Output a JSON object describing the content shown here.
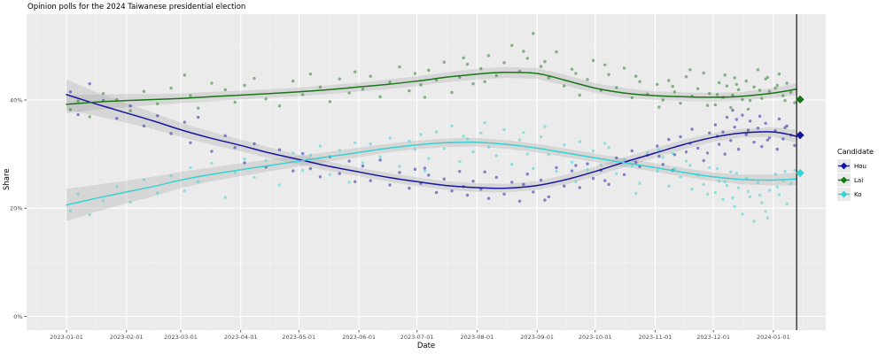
{
  "title": "Opinion polls for the 2024 Taiwanese presidential election",
  "axes": {
    "x_label": "Date",
    "y_label": "Share",
    "x_ticks": [
      {
        "label": "2023-01-01",
        "day": 0
      },
      {
        "label": "2023-02-01",
        "day": 31
      },
      {
        "label": "2023-03-01",
        "day": 59
      },
      {
        "label": "2023-04-01",
        "day": 90
      },
      {
        "label": "2023-05-01",
        "day": 120
      },
      {
        "label": "2023-06-01",
        "day": 151
      },
      {
        "label": "2023-07-01",
        "day": 181
      },
      {
        "label": "2023-08-01",
        "day": 212
      },
      {
        "label": "2023-09-01",
        "day": 243
      },
      {
        "label": "2023-10-01",
        "day": 273
      },
      {
        "label": "2023-11-01",
        "day": 304
      },
      {
        "label": "2023-12-01",
        "day": 334
      },
      {
        "label": "2024-01-01",
        "day": 365
      }
    ],
    "y_ticks": [
      {
        "label": "0%",
        "pct": 0
      },
      {
        "label": "20%",
        "pct": 20
      },
      {
        "label": "40%",
        "pct": 40
      }
    ],
    "y_minor_pcts": [
      10,
      30,
      50
    ]
  },
  "legend": {
    "title": "Candidate",
    "items": [
      {
        "label": "Hou",
        "key": "hou",
        "color": "#1515a0"
      },
      {
        "label": "Lai",
        "key": "lai",
        "color": "#177617"
      },
      {
        "label": "Ko",
        "key": "ko",
        "color": "#38d2d2"
      }
    ]
  },
  "colors": {
    "panel_bg": "#ebebeb",
    "grid_major": "#ffffff",
    "grid_minor": "#f4f4f4",
    "ribbon": "#979797",
    "axis_text": "#4d4d4d",
    "tick_mark": "#333333",
    "event_line": "#000000"
  },
  "chart_data": {
    "type": "scatter",
    "title": "Opinion polls for the 2024 Taiwanese presidential election",
    "xlabel": "Date",
    "ylabel": "Share",
    "x_unit": "days since 2023-01-01",
    "ylim_pct": [
      0,
      56
    ],
    "election_day": 377,
    "smooth": {
      "x_days": [
        0,
        15,
        31,
        46,
        59,
        74,
        90,
        105,
        120,
        135,
        151,
        166,
        181,
        196,
        212,
        227,
        243,
        258,
        273,
        288,
        304,
        319,
        334,
        349,
        365,
        377
      ],
      "series": [
        {
          "key": "hou",
          "name": "Hou",
          "values": [
            41.0,
            39.3,
            37.6,
            36.0,
            34.5,
            33.0,
            31.6,
            30.2,
            29.0,
            27.8,
            26.7,
            25.7,
            24.9,
            24.2,
            23.8,
            23.7,
            24.2,
            25.3,
            26.8,
            28.5,
            30.2,
            31.8,
            33.1,
            33.9,
            34.1,
            33.3
          ],
          "ci_halfwidth": [
            2.8,
            2.2,
            1.8,
            1.5,
            1.3,
            1.2,
            1.1,
            1.0,
            0.9,
            0.9,
            0.8,
            0.8,
            0.8,
            0.8,
            0.8,
            0.8,
            0.8,
            0.9,
            0.9,
            0.9,
            0.9,
            0.9,
            0.8,
            0.8,
            0.9,
            1.2
          ]
        },
        {
          "key": "lai",
          "name": "Lai",
          "values": [
            39.2,
            39.6,
            39.9,
            40.1,
            40.3,
            40.6,
            40.9,
            41.2,
            41.5,
            41.9,
            42.4,
            42.9,
            43.5,
            44.2,
            44.8,
            45.1,
            44.9,
            43.6,
            42.2,
            41.3,
            40.8,
            40.6,
            40.5,
            40.7,
            41.3,
            42.0
          ],
          "ci_halfwidth": [
            1.7,
            1.4,
            1.2,
            1.0,
            0.9,
            0.9,
            0.8,
            0.8,
            0.8,
            0.8,
            0.8,
            0.9,
            0.9,
            0.9,
            1.0,
            1.0,
            1.0,
            1.0,
            0.9,
            0.9,
            0.8,
            0.8,
            0.8,
            0.8,
            0.9,
            1.1
          ]
        },
        {
          "key": "ko",
          "name": "Ko",
          "values": [
            20.6,
            21.8,
            23.0,
            24.1,
            25.2,
            26.2,
            27.1,
            27.9,
            28.7,
            29.5,
            30.3,
            31.1,
            31.7,
            32.1,
            32.2,
            31.8,
            31.1,
            30.2,
            29.3,
            28.4,
            27.5,
            26.6,
            25.8,
            25.3,
            25.2,
            25.4
          ],
          "ci_halfwidth": [
            3.0,
            2.5,
            2.1,
            1.8,
            1.5,
            1.3,
            1.2,
            1.1,
            1.0,
            0.9,
            0.9,
            0.8,
            0.8,
            0.8,
            0.8,
            0.8,
            0.8,
            0.8,
            0.8,
            0.8,
            0.8,
            0.8,
            0.8,
            0.9,
            1.0,
            1.2
          ]
        }
      ]
    },
    "results": [
      {
        "key": "lai",
        "name": "Lai",
        "value": 40.1
      },
      {
        "key": "hou",
        "name": "Hou",
        "value": 33.5
      },
      {
        "key": "ko",
        "name": "Ko",
        "value": 26.5
      }
    ],
    "polls_columns": [
      "day",
      "hou",
      "lai",
      "ko"
    ],
    "polls": [
      [
        2,
        41.5,
        38.2,
        19.5
      ],
      [
        6,
        37.3,
        39.8,
        22.6
      ],
      [
        12,
        43.0,
        36.9,
        18.8
      ],
      [
        19,
        39.9,
        41.2,
        21.4
      ],
      [
        26,
        36.6,
        40.1,
        24.0
      ],
      [
        33,
        38.9,
        38.0,
        21.1
      ],
      [
        40,
        35.2,
        41.6,
        25.3
      ],
      [
        47,
        37.1,
        39.3,
        22.8
      ],
      [
        54,
        33.8,
        42.2,
        26.0
      ],
      [
        61,
        35.9,
        44.6,
        23.2
      ],
      [
        64,
        32.1,
        40.8,
        27.5
      ],
      [
        68,
        36.8,
        38.5,
        24.9
      ],
      [
        75,
        30.5,
        43.1,
        28.3
      ],
      [
        82,
        33.4,
        41.9,
        22.0
      ],
      [
        87,
        31.2,
        39.6,
        26.6
      ],
      [
        92,
        28.4,
        42.7,
        29.1
      ],
      [
        97,
        31.9,
        44.0,
        25.7
      ],
      [
        103,
        27.6,
        40.2,
        28.8
      ],
      [
        110,
        30.8,
        38.9,
        24.3
      ],
      [
        117,
        26.9,
        43.5,
        30.2
      ],
      [
        122,
        30.1,
        41.0,
        27.0
      ],
      [
        126,
        27.3,
        44.8,
        29.8
      ],
      [
        131,
        25.8,
        42.4,
        31.5
      ],
      [
        136,
        29.5,
        39.7,
        26.2
      ],
      [
        141,
        26.4,
        43.9,
        30.7
      ],
      [
        146,
        28.7,
        41.3,
        24.8
      ],
      [
        149,
        24.9,
        45.2,
        32.1
      ],
      [
        153,
        27.8,
        42.0,
        28.4
      ],
      [
        157,
        25.1,
        44.4,
        31.9
      ],
      [
        162,
        28.9,
        40.6,
        29.5
      ],
      [
        167,
        24.3,
        43.3,
        33.0
      ],
      [
        172,
        26.6,
        46.1,
        27.7
      ],
      [
        177,
        23.7,
        41.7,
        32.4
      ],
      [
        180,
        27.2,
        44.9,
        30.9
      ],
      [
        183,
        24.6,
        42.8,
        33.6
      ],
      [
        185,
        27.4,
        40.5,
        26.9
      ],
      [
        187,
        26.1,
        45.5,
        29.2
      ],
      [
        191,
        22.9,
        43.7,
        34.1
      ],
      [
        195,
        25.4,
        47.0,
        31.0
      ],
      [
        199,
        23.2,
        41.4,
        35.2
      ],
      [
        203,
        26.8,
        44.2,
        28.6
      ],
      [
        205,
        24.0,
        47.8,
        33.3
      ],
      [
        207,
        22.4,
        46.6,
        32.8
      ],
      [
        210,
        25.0,
        43.0,
        30.4
      ],
      [
        214,
        23.5,
        45.8,
        33.9
      ],
      [
        216,
        26.7,
        43.4,
        35.8
      ],
      [
        218,
        21.8,
        48.2,
        31.3
      ],
      [
        222,
        25.7,
        44.5,
        29.7
      ],
      [
        226,
        22.6,
        46.9,
        34.5
      ],
      [
        230,
        24.8,
        50.1,
        28.1
      ],
      [
        234,
        21.3,
        45.3,
        32.6
      ],
      [
        236,
        24.4,
        49.0,
        34.0
      ],
      [
        238,
        26.3,
        47.7,
        30.0
      ],
      [
        241,
        23.0,
        52.3,
        27.3
      ],
      [
        245,
        25.2,
        46.2,
        33.2
      ],
      [
        247,
        21.5,
        47.1,
        35.1
      ],
      [
        249,
        22.1,
        44.1,
        29.9
      ],
      [
        253,
        27.5,
        48.9,
        26.8
      ],
      [
        257,
        24.1,
        42.6,
        31.7
      ],
      [
        261,
        26.9,
        45.7,
        28.5
      ],
      [
        263,
        27.9,
        44.9,
        24.9
      ],
      [
        265,
        23.8,
        40.9,
        32.3
      ],
      [
        269,
        28.2,
        43.8,
        27.1
      ],
      [
        272,
        25.5,
        47.3,
        30.6
      ],
      [
        276,
        27.0,
        41.8,
        28.0
      ],
      [
        278,
        25.1,
        46.5,
        32.0
      ],
      [
        280,
        24.4,
        44.7,
        31.2
      ],
      [
        284,
        29.3,
        42.3,
        26.4
      ],
      [
        288,
        26.2,
        45.9,
        29.0
      ],
      [
        292,
        30.6,
        40.4,
        27.8
      ],
      [
        294,
        28.5,
        44.4,
        22.7
      ],
      [
        296,
        27.7,
        43.4,
        24.6
      ],
      [
        300,
        29.8,
        41.1,
        30.3
      ],
      [
        305,
        31.5,
        42.9,
        26.9
      ],
      [
        306,
        29.6,
        38.7,
        30.8
      ],
      [
        308,
        28.1,
        40.0,
        29.4
      ],
      [
        311,
        32.7,
        43.6,
        24.1
      ],
      [
        313,
        27.0,
        42.5,
        30.1
      ],
      [
        314,
        29.9,
        41.5,
        27.2
      ],
      [
        317,
        33.2,
        39.4,
        25.8
      ],
      [
        320,
        30.4,
        44.3,
        28.7
      ],
      [
        322,
        32.0,
        45.6,
        27.9
      ],
      [
        323,
        34.6,
        40.7,
        23.5
      ],
      [
        326,
        31.1,
        42.1,
        26.1
      ],
      [
        329,
        28.8,
        45.0,
        24.4
      ],
      [
        331,
        30.2,
        39.0,
        22.6
      ],
      [
        332,
        33.9,
        41.2,
        27.5
      ],
      [
        335,
        35.4,
        39.1,
        22.9
      ],
      [
        336,
        33.3,
        41.0,
        27.3
      ],
      [
        337,
        31.8,
        43.2,
        25.0
      ],
      [
        339,
        34.1,
        40.5,
        21.6
      ],
      [
        340,
        30.0,
        44.6,
        24.9
      ],
      [
        341,
        36.8,
        42.6,
        24.2
      ],
      [
        343,
        32.5,
        38.6,
        26.7
      ],
      [
        344,
        38.1,
        40.9,
        21.9
      ],
      [
        345,
        35.0,
        44.1,
        20.3
      ],
      [
        346,
        36.4,
        42.9,
        26.5
      ],
      [
        347,
        30.9,
        41.9,
        23.8
      ],
      [
        349,
        37.2,
        40.1,
        18.9
      ],
      [
        351,
        33.6,
        43.5,
        25.5
      ],
      [
        352,
        34.4,
        38.3,
        23.1
      ],
      [
        353,
        36.1,
        39.9,
        22.1
      ],
      [
        355,
        32.2,
        42.4,
        17.6
      ],
      [
        357,
        34.8,
        45.6,
        24.7
      ],
      [
        358,
        37.0,
        41.8,
        22.4
      ],
      [
        359,
        31.4,
        40.3,
        21.0
      ],
      [
        361,
        35.7,
        43.9,
        19.4
      ],
      [
        362,
        32.6,
        44.2,
        18.2
      ],
      [
        363,
        33.0,
        41.6,
        23.3
      ],
      [
        366,
        34.3,
        42.2,
        26.3
      ],
      [
        367,
        30.9,
        42.7,
        23.9
      ],
      [
        368,
        36.5,
        44.8,
        22.5
      ],
      [
        370,
        32.8,
        40.8,
        25.1
      ],
      [
        371,
        34.9,
        39.9,
        26.8
      ],
      [
        372,
        35.2,
        43.1,
        20.8
      ],
      [
        374,
        33.5,
        41.4,
        24.5
      ],
      [
        376,
        31.6,
        39.5,
        27.0
      ]
    ]
  }
}
